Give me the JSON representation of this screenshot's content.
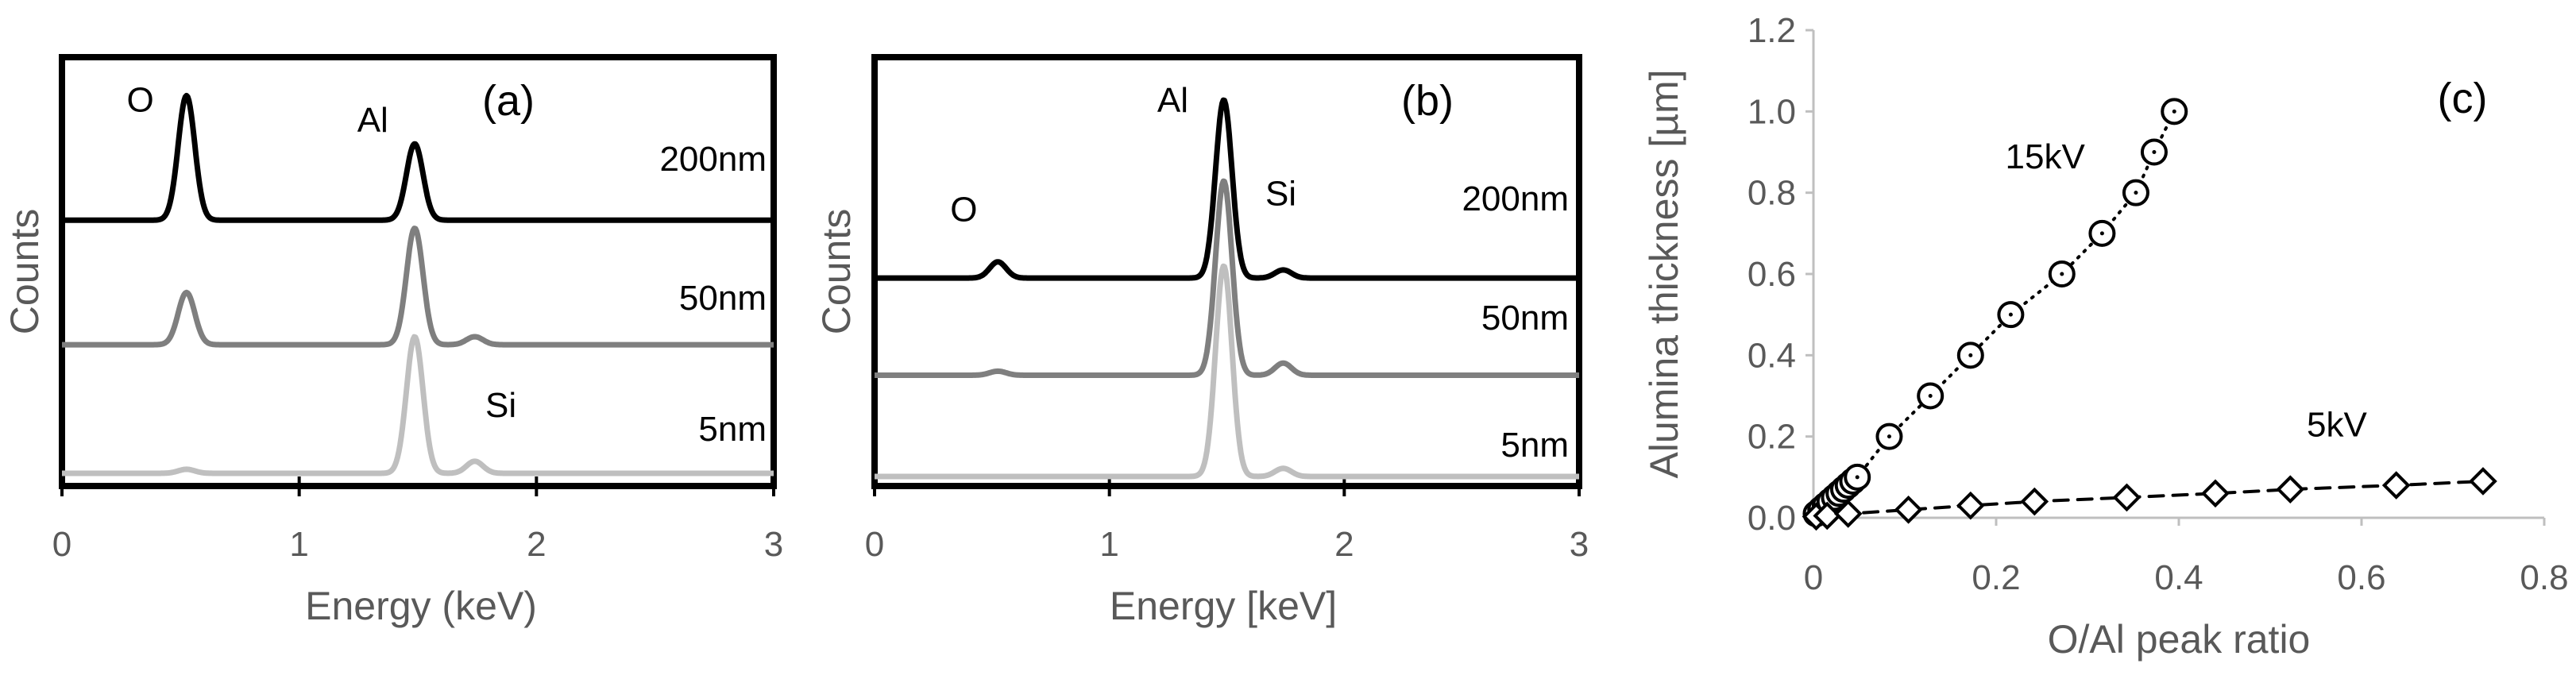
{
  "chart_data": [
    {
      "type": "line",
      "panel_label": "(a)",
      "xlabel": "Energy (keV)",
      "ylabel": "Counts",
      "xlim": [
        0,
        3
      ],
      "xticks": [
        "0",
        "1",
        "2",
        "3"
      ],
      "grid": false,
      "series": [
        {
          "name": "200nm",
          "color": "#000000",
          "baseline": 0.63,
          "peaks": [
            {
              "e": 0.525,
              "h": 0.31
            },
            {
              "e": 1.487,
              "h": 0.19
            },
            {
              "e": 1.74,
              "h": 0.0
            }
          ]
        },
        {
          "name": "50nm",
          "color": "#7f7f7f",
          "baseline": 0.32,
          "peaks": [
            {
              "e": 0.525,
              "h": 0.13
            },
            {
              "e": 1.487,
              "h": 0.29
            },
            {
              "e": 1.74,
              "h": 0.02
            }
          ]
        },
        {
          "name": "5nm",
          "color": "#bfbfbf",
          "baseline": 0.0,
          "peaks": [
            {
              "e": 0.525,
              "h": 0.01
            },
            {
              "e": 1.487,
              "h": 0.34
            },
            {
              "e": 1.74,
              "h": 0.03
            }
          ]
        }
      ],
      "annotations": [
        {
          "text": "O",
          "x": 0.33,
          "y": 0.9
        },
        {
          "text": "Al",
          "x": 1.31,
          "y": 0.85
        },
        {
          "text": "Si",
          "x": 1.85,
          "y": 0.14
        }
      ]
    },
    {
      "type": "line",
      "panel_label": "(b)",
      "xlabel": "Energy [keV]",
      "ylabel": "Counts",
      "xlim": [
        0,
        3
      ],
      "xticks": [
        "0",
        "1",
        "2",
        "3"
      ],
      "grid": false,
      "series": [
        {
          "name": "200nm",
          "color": "#000000",
          "baseline": 0.49,
          "peaks": [
            {
              "e": 0.525,
              "h": 0.04
            },
            {
              "e": 1.487,
              "h": 0.44
            },
            {
              "e": 1.74,
              "h": 0.02
            }
          ]
        },
        {
          "name": "50nm",
          "color": "#7f7f7f",
          "baseline": 0.25,
          "peaks": [
            {
              "e": 0.525,
              "h": 0.01
            },
            {
              "e": 1.487,
              "h": 0.48
            },
            {
              "e": 1.74,
              "h": 0.03
            }
          ]
        },
        {
          "name": "5nm",
          "color": "#bfbfbf",
          "baseline": 0.0,
          "peaks": [
            {
              "e": 0.525,
              "h": 0.0
            },
            {
              "e": 1.487,
              "h": 0.52
            },
            {
              "e": 1.74,
              "h": 0.02
            }
          ]
        }
      ],
      "annotations": [
        {
          "text": "O",
          "x": 0.38,
          "y": 0.63
        },
        {
          "text": "Al",
          "x": 1.27,
          "y": 0.9
        },
        {
          "text": "Si",
          "x": 1.73,
          "y": 0.67
        }
      ]
    },
    {
      "type": "scatter",
      "panel_label": "(c)",
      "xlabel": "O/Al peak ratio",
      "ylabel": "Alumina thickness [µm]",
      "xlim": [
        0,
        0.8
      ],
      "ylim": [
        0,
        1.2
      ],
      "xticks": [
        "0",
        "0.2",
        "0.4",
        "0.6",
        "0.8"
      ],
      "yticks": [
        "0.0",
        "0.2",
        "0.4",
        "0.6",
        "0.8",
        "1.0",
        "1.2"
      ],
      "grid": false,
      "series": [
        {
          "name": "15kV",
          "marker": "circle",
          "line": "dotted",
          "x": [
            0.003,
            0.008,
            0.013,
            0.018,
            0.023,
            0.028,
            0.033,
            0.038,
            0.043,
            0.048,
            0.083,
            0.128,
            0.172,
            0.216,
            0.272,
            0.316,
            0.353,
            0.373,
            0.395
          ],
          "y": [
            0.01,
            0.02,
            0.03,
            0.04,
            0.05,
            0.06,
            0.07,
            0.08,
            0.09,
            0.1,
            0.2,
            0.3,
            0.4,
            0.5,
            0.6,
            0.7,
            0.8,
            0.9,
            1.0
          ]
        },
        {
          "name": "5kV",
          "marker": "diamond",
          "line": "dashed",
          "x": [
            0.003,
            0.015,
            0.038,
            0.104,
            0.172,
            0.242,
            0.343,
            0.44,
            0.522,
            0.638,
            0.733
          ],
          "y": [
            0.003,
            0.005,
            0.01,
            0.02,
            0.03,
            0.04,
            0.05,
            0.06,
            0.07,
            0.08,
            0.09
          ]
        }
      ],
      "annotations": [
        {
          "text": "15kV",
          "x": 0.21,
          "y": 0.86
        },
        {
          "text": "5kV",
          "x": 0.54,
          "y": 0.2
        }
      ]
    }
  ]
}
